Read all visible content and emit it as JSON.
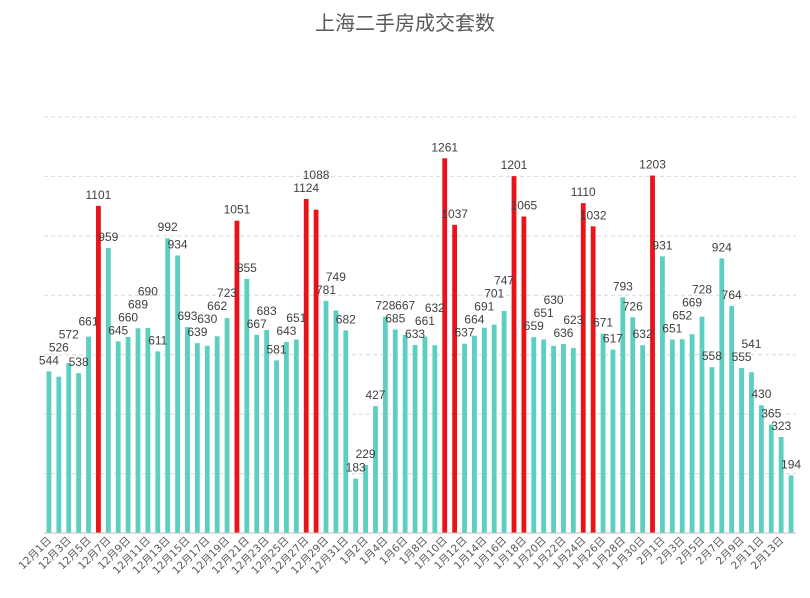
{
  "chart_data": {
    "type": "bar",
    "title": "上海二手房成交套数",
    "xlabel": "",
    "ylabel": "",
    "ylim": [
      0,
      1400
    ],
    "grid": true,
    "colors": {
      "normal": "#5ccfc0",
      "highlight": "#e8141a",
      "text": "#404040",
      "grid": "#d9d9d9"
    },
    "series": [
      {
        "name": "成交套数",
        "values": [
          544,
          526,
          572,
          538,
          661,
          1101,
          959,
          645,
          660,
          689,
          690,
          611,
          992,
          934,
          693,
          639,
          630,
          662,
          723,
          1051,
          855,
          667,
          683,
          581,
          643,
          651,
          1124,
          1088,
          781,
          749,
          682,
          183,
          229,
          427,
          728,
          685,
          667,
          633,
          661,
          632,
          1261,
          1037,
          637,
          664,
          691,
          701,
          747,
          1201,
          1065,
          659,
          651,
          630,
          636,
          623,
          1110,
          1032,
          671,
          617,
          793,
          726,
          632,
          1203,
          931,
          651,
          652,
          669,
          728,
          558,
          924,
          764,
          555,
          541,
          430,
          365,
          323,
          194
        ],
        "highlight": [
          false,
          false,
          false,
          false,
          false,
          true,
          false,
          false,
          false,
          false,
          false,
          false,
          false,
          false,
          false,
          false,
          false,
          false,
          false,
          true,
          false,
          false,
          false,
          false,
          false,
          false,
          true,
          true,
          false,
          false,
          false,
          false,
          false,
          false,
          false,
          false,
          false,
          false,
          false,
          false,
          true,
          true,
          false,
          false,
          false,
          false,
          false,
          true,
          true,
          false,
          false,
          false,
          false,
          false,
          true,
          true,
          false,
          false,
          false,
          false,
          false,
          true,
          false,
          false,
          false,
          false,
          false,
          false,
          false,
          false,
          false,
          false,
          false,
          false,
          false,
          false
        ]
      }
    ],
    "categories": [
      "12月1日",
      "",
      "12月3日",
      "",
      "12月5日",
      "",
      "12月7日",
      "",
      "12月9日",
      "",
      "12月11日",
      "",
      "12月13日",
      "",
      "12月15日",
      "",
      "12月17日",
      "",
      "12月19日",
      "",
      "12月21日",
      "",
      "12月23日",
      "",
      "12月25日",
      "",
      "12月27日",
      "",
      "12月29日",
      "",
      "12月31日",
      "",
      "1月2日",
      "",
      "1月4日",
      "",
      "1月6日",
      "",
      "1月8日",
      "",
      "1月10日",
      "",
      "1月12日",
      "",
      "1月14日",
      "",
      "1月16日",
      "",
      "1月18日",
      "",
      "1月20日",
      "",
      "1月22日",
      "",
      "1月24日",
      "",
      "1月26日",
      "",
      "1月28日",
      "",
      "1月30日",
      "",
      "2月1日",
      "",
      "2月3日",
      "",
      "2月5日",
      "",
      "2月7日",
      "",
      "2月9日",
      "",
      "2月11日",
      "",
      "2月13日",
      ""
    ]
  }
}
